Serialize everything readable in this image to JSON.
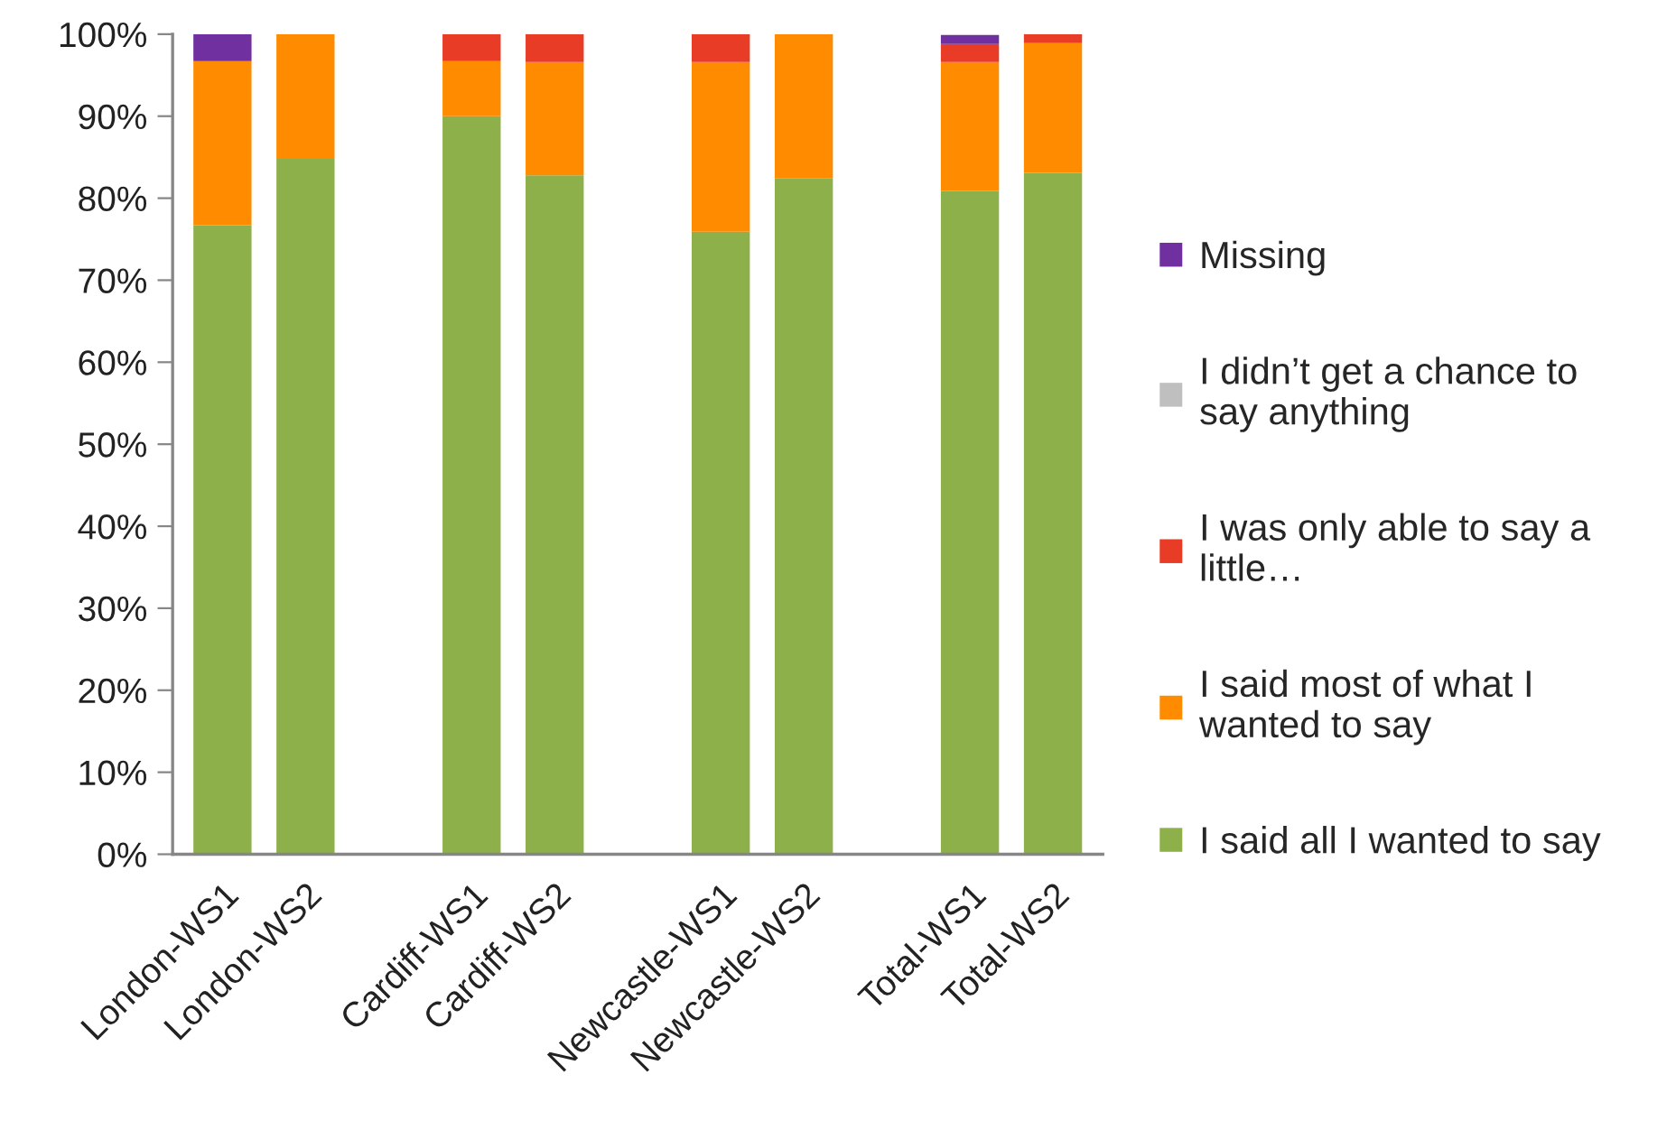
{
  "chart_data": {
    "type": "bar",
    "stacked": true,
    "categories": [
      "London-WS1",
      "London-WS2",
      null,
      "Cardiff-WS1",
      "Cardiff-WS2",
      null,
      "Newcastle-WS1",
      "Newcastle-WS2",
      null,
      "Total-WS1",
      "Total-WS2"
    ],
    "series": [
      {
        "name": "I said all I wanted to say",
        "color": "#8db04b",
        "values": [
          76.7,
          84.8,
          null,
          90.0,
          82.8,
          null,
          75.9,
          82.4,
          null,
          80.9,
          83.1
        ]
      },
      {
        "name": "I said most of what I\nwanted to say",
        "color": "#ff8c00",
        "values": [
          20.0,
          15.2,
          null,
          6.7,
          13.8,
          null,
          20.7,
          17.6,
          null,
          15.7,
          15.8
        ]
      },
      {
        "name": "I was only able to say a\nlittle…",
        "color": "#e83c27",
        "values": [
          0,
          0,
          null,
          3.3,
          3.4,
          null,
          3.4,
          0,
          null,
          2.2,
          1.1
        ]
      },
      {
        "name": "I didn’t get a chance to\nsay anything",
        "color": "#bfbfbf",
        "values": [
          0,
          0,
          null,
          0,
          0,
          null,
          0,
          0,
          null,
          0,
          0
        ]
      },
      {
        "name": "Missing",
        "color": "#7030a0",
        "values": [
          3.3,
          0,
          null,
          0,
          0,
          null,
          0,
          0,
          null,
          1.1,
          0
        ]
      }
    ],
    "ylim": [
      0,
      100
    ],
    "yticks": [
      {
        "value": 0,
        "label": "0%"
      },
      {
        "value": 10,
        "label": "10%"
      },
      {
        "value": 20,
        "label": "20%"
      },
      {
        "value": 30,
        "label": "30%"
      },
      {
        "value": 40,
        "label": "40%"
      },
      {
        "value": 50,
        "label": "50%"
      },
      {
        "value": 60,
        "label": "60%"
      },
      {
        "value": 70,
        "label": "70%"
      },
      {
        "value": 80,
        "label": "80%"
      },
      {
        "value": 90,
        "label": "90%"
      },
      {
        "value": 100,
        "label": "100%"
      }
    ],
    "grid": false,
    "legend": "right"
  }
}
